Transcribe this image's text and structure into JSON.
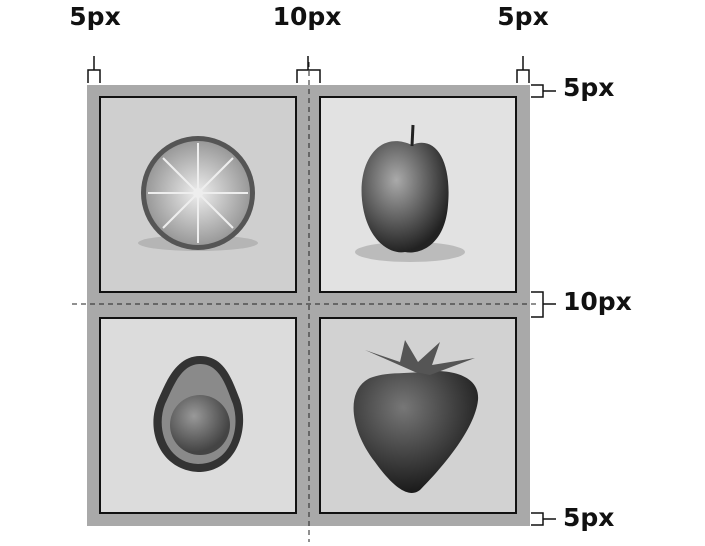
{
  "top_labels": [
    "5px",
    "10px",
    "5px"
  ],
  "right_labels": [
    "5px",
    "10px",
    "5px"
  ]
}
